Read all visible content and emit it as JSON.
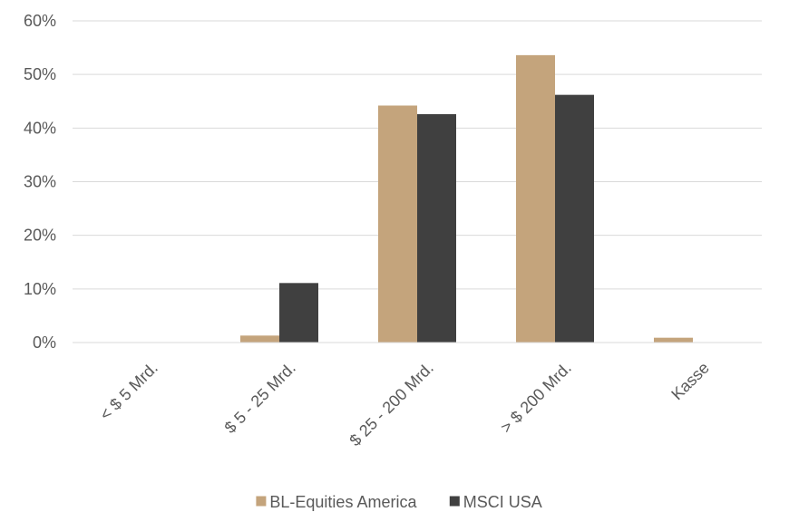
{
  "chart_data": {
    "type": "bar",
    "categories": [
      "< $ 5 Mrd.",
      "$ 5 - 25 Mrd.",
      "$ 25 - 200 Mrd.",
      "> $ 200 Mrd.",
      "Kasse"
    ],
    "series": [
      {
        "name": "BL-Equities America",
        "color": "#c4a47c",
        "values": [
          0,
          1.3,
          44.2,
          53.6,
          0.9
        ]
      },
      {
        "name": "MSCI USA",
        "color": "#404040",
        "values": [
          0,
          11.1,
          42.6,
          46.2,
          0
        ]
      }
    ],
    "ylim": [
      0,
      60
    ],
    "yticks": [
      0,
      10,
      20,
      30,
      40,
      50,
      60
    ],
    "ytick_suffix": "%",
    "grid": true,
    "legend_position": "bottom"
  }
}
